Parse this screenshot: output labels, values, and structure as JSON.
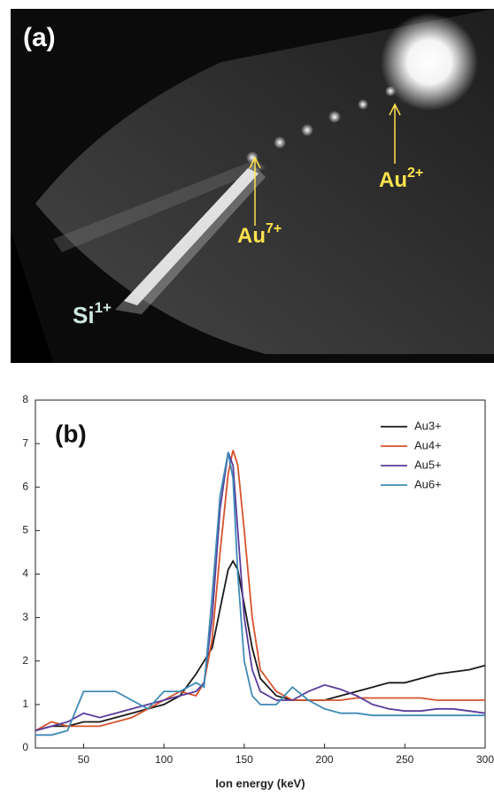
{
  "panel_a": {
    "label": "(a)",
    "annotations": [
      {
        "base": "Si",
        "sup": "1+"
      },
      {
        "base": "Au",
        "sup": "7+"
      },
      {
        "base": "Au",
        "sup": "2+"
      }
    ]
  },
  "chart_data": {
    "type": "line",
    "panel_label": "(b)",
    "x_label": "Ion energy (keV)",
    "x": [
      20,
      30,
      40,
      50,
      60,
      70,
      80,
      90,
      100,
      110,
      120,
      125,
      130,
      135,
      140,
      143,
      146,
      150,
      155,
      160,
      170,
      180,
      190,
      200,
      210,
      220,
      230,
      240,
      250,
      260,
      270,
      280,
      290,
      300
    ],
    "series": [
      {
        "name": "Au3+",
        "color": "#1a1a1a",
        "values": [
          0.4,
          0.5,
          0.5,
          0.6,
          0.6,
          0.7,
          0.8,
          0.9,
          1.0,
          1.2,
          1.7,
          2.0,
          2.3,
          3.2,
          4.1,
          4.3,
          4.1,
          3.3,
          2.3,
          1.6,
          1.2,
          1.1,
          1.1,
          1.1,
          1.2,
          1.3,
          1.4,
          1.5,
          1.5,
          1.6,
          1.7,
          1.75,
          1.8,
          1.9
        ]
      },
      {
        "name": "Au4+",
        "color": "#d6532c",
        "values": [
          0.4,
          0.6,
          0.5,
          0.5,
          0.5,
          0.6,
          0.7,
          0.9,
          1.1,
          1.3,
          1.2,
          1.5,
          2.5,
          4.5,
          6.3,
          6.85,
          6.5,
          5.0,
          3.0,
          1.8,
          1.3,
          1.1,
          1.1,
          1.1,
          1.1,
          1.15,
          1.15,
          1.15,
          1.15,
          1.15,
          1.1,
          1.1,
          1.1,
          1.1
        ]
      },
      {
        "name": "Au5+",
        "color": "#5a3c9c",
        "values": [
          0.4,
          0.5,
          0.6,
          0.8,
          0.7,
          0.8,
          0.9,
          1.0,
          1.1,
          1.2,
          1.3,
          1.5,
          3.0,
          5.5,
          6.8,
          6.5,
          5.0,
          3.0,
          1.8,
          1.3,
          1.1,
          1.1,
          1.3,
          1.45,
          1.35,
          1.2,
          1.0,
          0.9,
          0.85,
          0.85,
          0.9,
          0.9,
          0.85,
          0.8
        ]
      },
      {
        "name": "Au6+",
        "color": "#3f8bb6",
        "values": [
          0.3,
          0.3,
          0.4,
          1.3,
          1.3,
          1.3,
          1.1,
          0.9,
          1.3,
          1.3,
          1.5,
          1.4,
          3.5,
          5.8,
          6.8,
          6.2,
          4.0,
          2.0,
          1.2,
          1.0,
          1.0,
          1.4,
          1.1,
          0.9,
          0.8,
          0.8,
          0.75,
          0.75,
          0.75,
          0.75,
          0.75,
          0.75,
          0.75,
          0.75
        ]
      }
    ],
    "xlim": [
      20,
      300
    ],
    "xticks": [
      50,
      100,
      150,
      200,
      250,
      300
    ],
    "ylim": [
      0,
      8
    ],
    "yticks": [
      0,
      1,
      2,
      3,
      4,
      5,
      6,
      7,
      8
    ],
    "legend": "upper right"
  }
}
